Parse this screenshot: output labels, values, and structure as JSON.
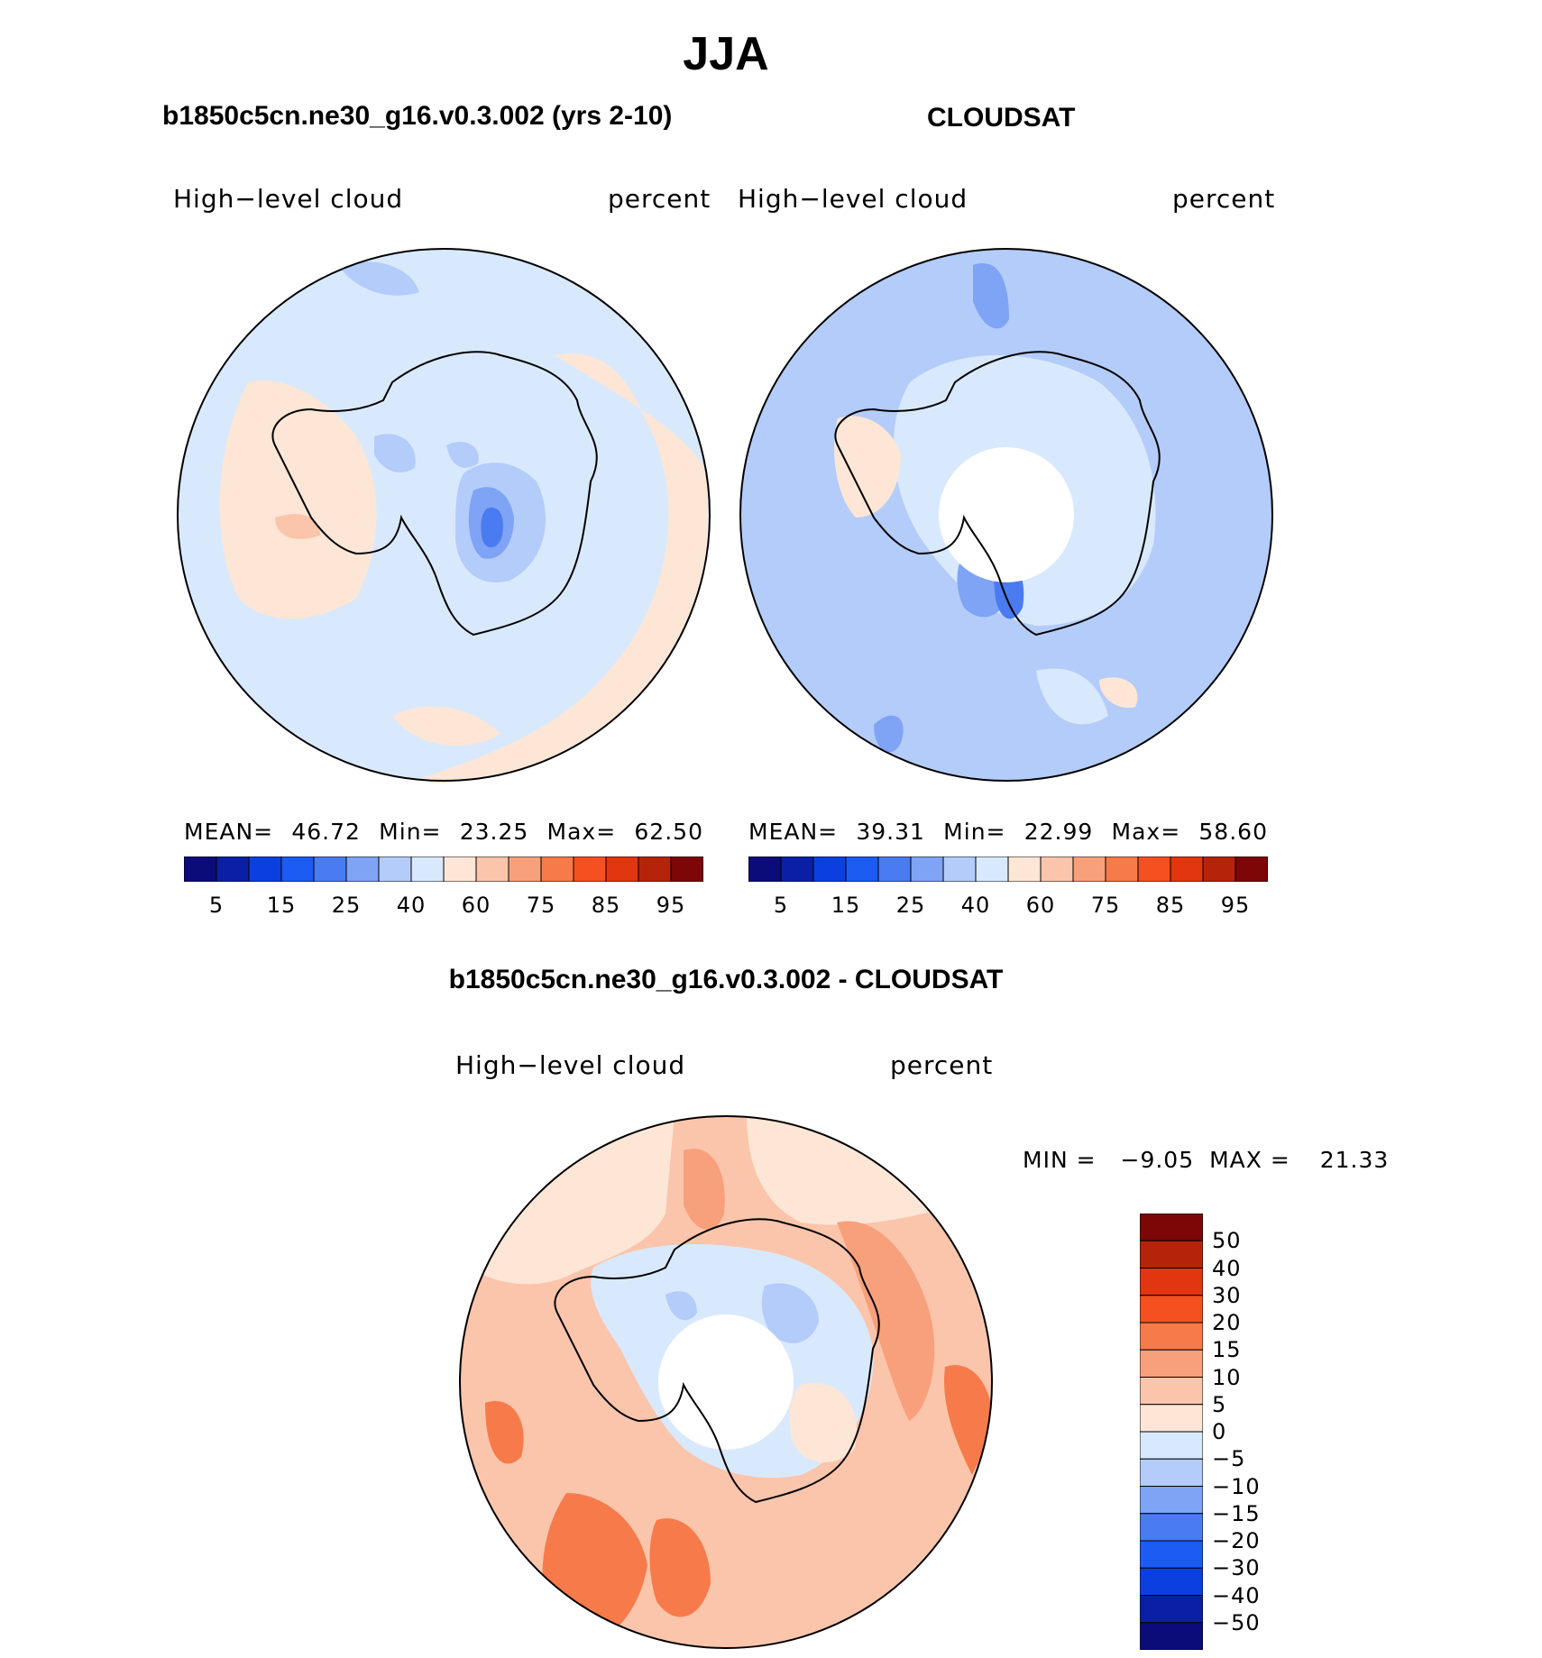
{
  "figure": {
    "season": "JJA",
    "panels": [
      {
        "title": "b1850c5cn.ne30_g16.v0.3.002 (yrs 2-10)",
        "variable": "High−level cloud",
        "units": "percent",
        "stats": {
          "mean_label": "MEAN=",
          "mean": "46.72",
          "min_label": "Min=",
          "min": "23.25",
          "max_label": "Max=",
          "max": "62.50"
        }
      },
      {
        "title": "CLOUDSAT",
        "variable": "High−level cloud",
        "units": "percent",
        "stats": {
          "mean_label": "MEAN=",
          "mean": "39.31",
          "min_label": "Min=",
          "min": "22.99",
          "max_label": "Max=",
          "max": "58.60"
        }
      },
      {
        "title": "b1850c5cn.ne30_g16.v0.3.002 - CLOUDSAT",
        "variable": "High−level cloud",
        "units": "percent",
        "stats": {
          "min_label": "MIN =",
          "min": "−9.05",
          "max_label": "MAX =",
          "max": "21.33"
        }
      }
    ]
  },
  "colorbar_abs": {
    "colors": [
      "#0b0b7a",
      "#0a1fa6",
      "#0b3fe0",
      "#1d5cf2",
      "#4a7bf0",
      "#7fa3f5",
      "#b3ccfa",
      "#d9e9fd",
      "#fde6d6",
      "#fbc5ab",
      "#f8a07c",
      "#f77a4a",
      "#f5501f",
      "#e1360f",
      "#b5240a",
      "#7d0606"
    ],
    "tick_labels": [
      "5",
      "15",
      "25",
      "40",
      "60",
      "75",
      "85",
      "95"
    ]
  },
  "colorbar_diff": {
    "colors_top_to_bottom": [
      "#7d0606",
      "#b5240a",
      "#e1360f",
      "#f5501f",
      "#f77a4a",
      "#f8a07c",
      "#fbc5ab",
      "#fde6d6",
      "#d9e9fd",
      "#b3ccfa",
      "#7fa3f5",
      "#4a7bf0",
      "#1d5cf2",
      "#0b3fe0",
      "#0a1fa6",
      "#0b0b7a"
    ],
    "tick_labels": [
      "50",
      "40",
      "30",
      "20",
      "15",
      "10",
      "5",
      "0",
      "−5",
      "−10",
      "−15",
      "−20",
      "−30",
      "−40",
      "−50"
    ]
  },
  "map_colors": {
    "model_base": "#d9e9fd",
    "model_warm": "#fde6d6",
    "model_cool": "#b3ccfa",
    "model_cooler": "#7fa3f5",
    "model_coolest": "#4a7bf0",
    "obs_base": "#b3ccfa",
    "obs_light": "#d9e9fd",
    "obs_cooler": "#7fa3f5",
    "obs_coolest": "#4a7bf0",
    "obs_warm": "#fde6d6",
    "diff_base": "#fbc5ab",
    "diff_hot": "#f8a07c",
    "diff_hotter": "#f77a4a",
    "diff_light": "#fde6d6",
    "diff_cool": "#d9e9fd",
    "diff_cooler": "#b3ccfa"
  }
}
